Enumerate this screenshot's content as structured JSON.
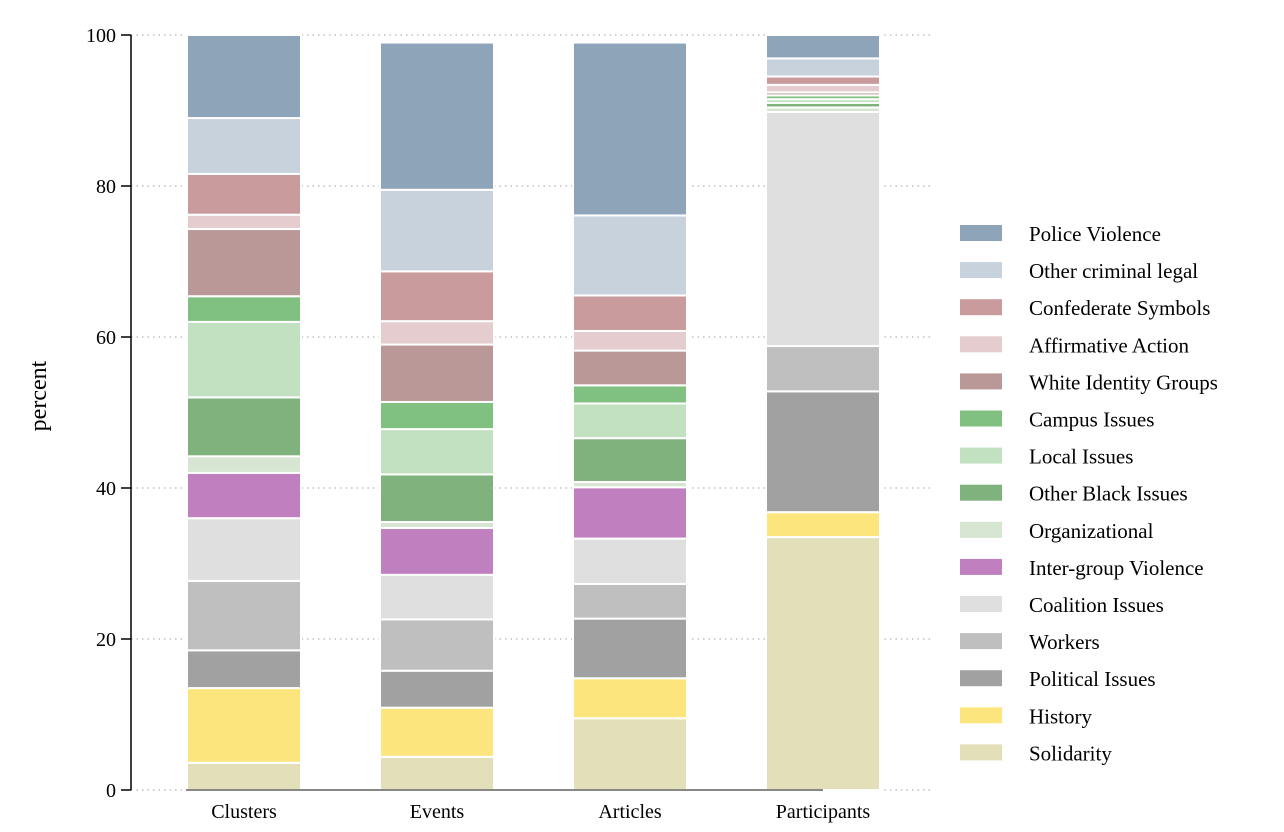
{
  "chart_data": {
    "type": "bar",
    "stacked": true,
    "title": "",
    "xlabel": "",
    "ylabel": "percent",
    "ylim": [
      0,
      100
    ],
    "yticks": [
      0,
      20,
      40,
      60,
      80,
      100
    ],
    "grid": "horizontal dotted",
    "legend_position": "right",
    "categories": [
      "Clusters",
      "Events",
      "Articles",
      "Participants"
    ],
    "series": [
      {
        "name": "Solidarity",
        "color": "#e3dfb8",
        "values": [
          3.6,
          4.4,
          9.5,
          33.5
        ]
      },
      {
        "name": "History",
        "color": "#fde57e",
        "values": [
          9.9,
          6.5,
          5.3,
          3.3
        ]
      },
      {
        "name": "Political Issues",
        "color": "#a1a1a1",
        "values": [
          5.0,
          4.9,
          7.9,
          16.0
        ]
      },
      {
        "name": "Workers",
        "color": "#bfbfbf",
        "values": [
          9.2,
          6.8,
          4.6,
          6.0
        ]
      },
      {
        "name": "Coalition Issues",
        "color": "#dfdfdf",
        "values": [
          8.3,
          5.9,
          6.0,
          31.0
        ]
      },
      {
        "name": "Inter-group Violence",
        "color": "#c080c0",
        "values": [
          6.0,
          6.2,
          6.8,
          0.0
        ]
      },
      {
        "name": "Organizational",
        "color": "#d6e6d3",
        "values": [
          2.2,
          0.8,
          0.7,
          0.6
        ]
      },
      {
        "name": "Other Black Issues",
        "color": "#80b27d",
        "values": [
          7.8,
          6.3,
          5.8,
          0.6
        ]
      },
      {
        "name": "Local Issues",
        "color": "#c1e1c0",
        "values": [
          10.0,
          6.0,
          4.6,
          0.5
        ]
      },
      {
        "name": "Campus Issues",
        "color": "#80c080",
        "values": [
          3.4,
          3.6,
          2.4,
          0.5
        ]
      },
      {
        "name": "White Identity Groups",
        "color": "#b99897",
        "values": [
          8.9,
          7.6,
          4.6,
          0.4
        ]
      },
      {
        "name": "Affirmative Action",
        "color": "#e5ccce",
        "values": [
          1.9,
          3.1,
          2.6,
          1.0
        ]
      },
      {
        "name": "Confederate Symbols",
        "color": "#c99b9c",
        "values": [
          5.4,
          6.6,
          4.7,
          1.1
        ]
      },
      {
        "name": "Other criminal legal",
        "color": "#c7d2dd",
        "values": [
          7.4,
          10.8,
          10.6,
          2.4
        ]
      },
      {
        "name": "Police Violence",
        "color": "#8ea4b9",
        "values": [
          11.0,
          19.5,
          22.9,
          3.1
        ]
      }
    ],
    "legend_order": [
      "Police Violence",
      "Other criminal legal",
      "Confederate Symbols",
      "Affirmative Action",
      "White Identity Groups",
      "Campus Issues",
      "Local Issues",
      "Other Black Issues",
      "Organizational",
      "Inter-group Violence",
      "Coalition Issues",
      "Workers",
      "Political Issues",
      "History",
      "Solidarity"
    ]
  }
}
